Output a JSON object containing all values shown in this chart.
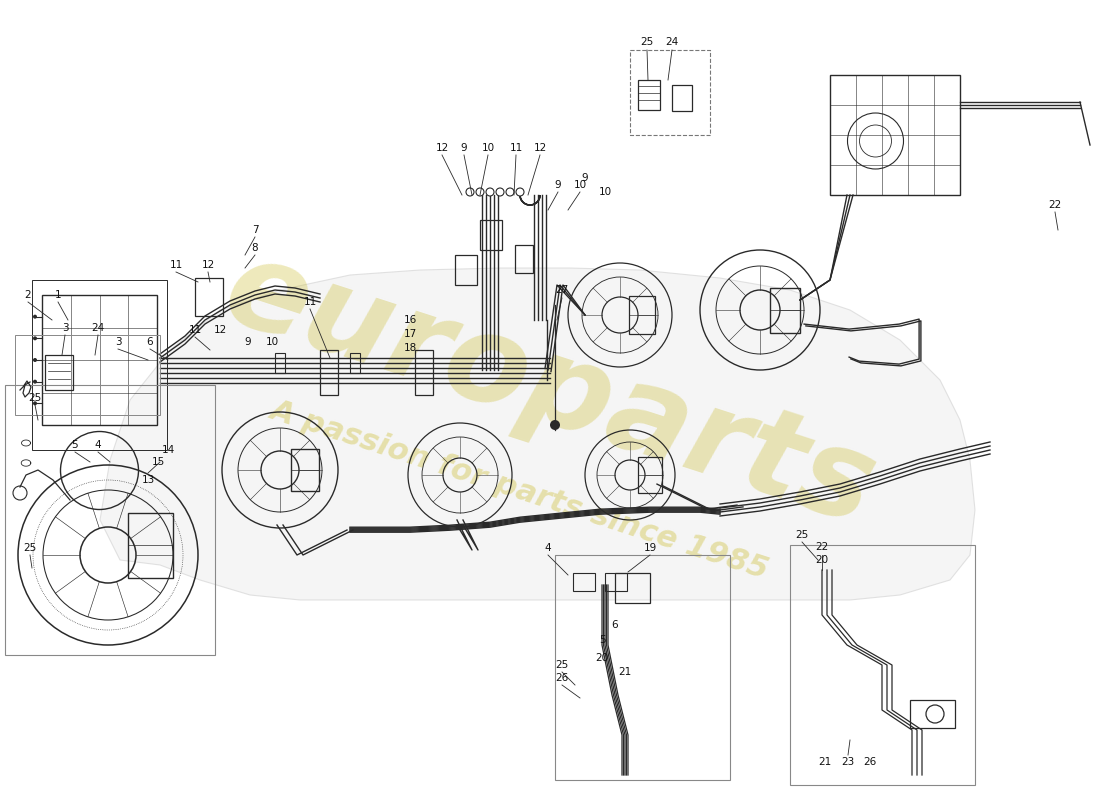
{
  "background_color": "#ffffff",
  "line_color": "#2a2a2a",
  "watermark_text1": "europarts",
  "watermark_text2": "A passion for parts since 1985",
  "watermark_color": "#c8b820",
  "watermark_alpha": 0.3,
  "figsize": [
    11.0,
    8.0
  ],
  "dpi": 100,
  "car_body_color": "#cccccc",
  "car_body_alpha": 0.25,
  "inset_border_color": "#888888",
  "label_fontsize": 7.5,
  "label_color": "#111111"
}
